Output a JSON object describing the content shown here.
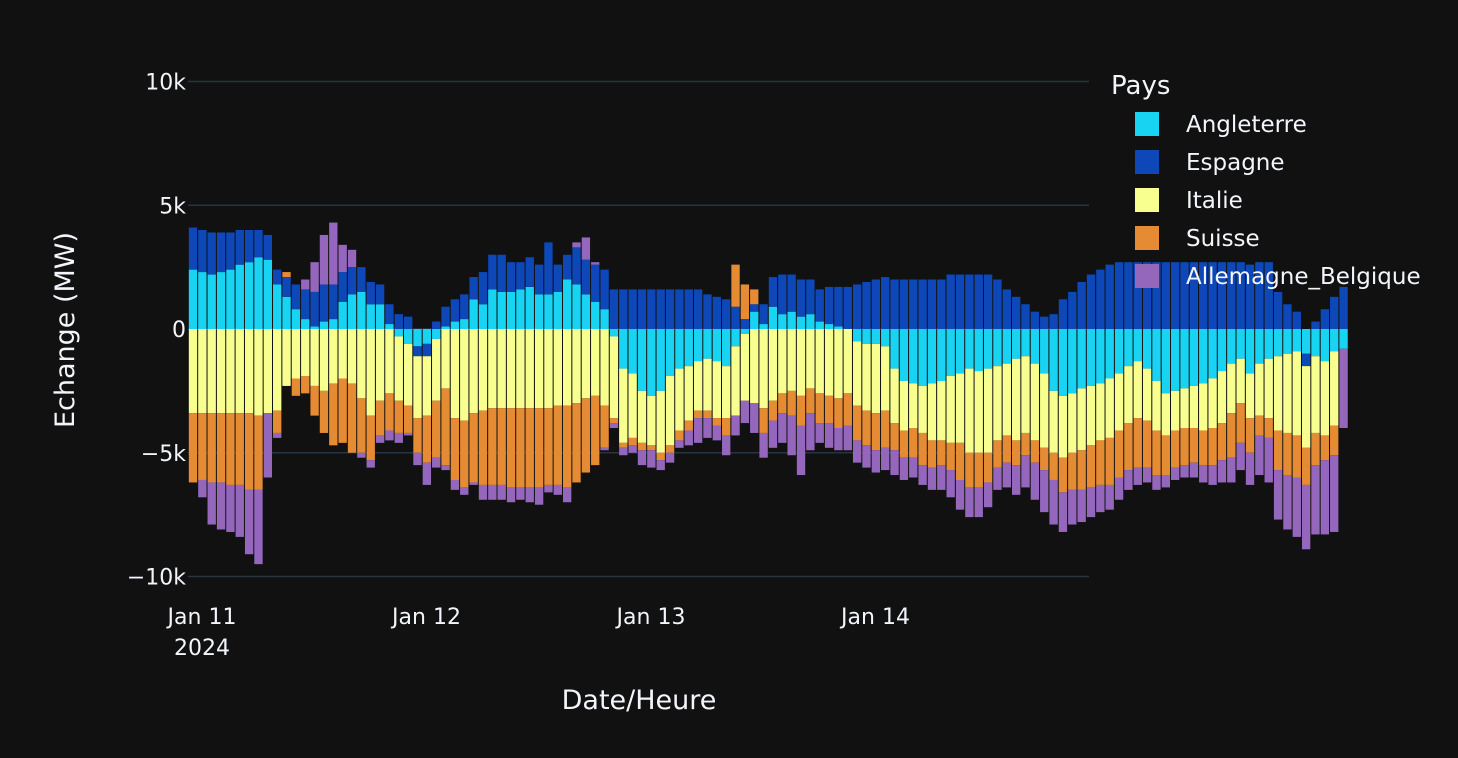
{
  "chart_data": {
    "type": "bar",
    "barmode": "relative",
    "title": "",
    "xlabel": "Date/Heure",
    "ylabel": "Echange (MW)",
    "x_start": "2024-01-11 00:00",
    "x_step_hours": 1,
    "x_tick_labels": [
      {
        "date": "2024-01-11",
        "label": "Jan 11",
        "sublabel": "2024"
      },
      {
        "date": "2024-01-12",
        "label": "Jan 12",
        "sublabel": ""
      },
      {
        "date": "2024-01-13",
        "label": "Jan 13",
        "sublabel": ""
      },
      {
        "date": "2024-01-14",
        "label": "Jan 14",
        "sublabel": ""
      }
    ],
    "y_ticks": [
      {
        "value": 10000,
        "label": "10k"
      },
      {
        "value": 5000,
        "label": "5k"
      },
      {
        "value": 0,
        "label": "0"
      },
      {
        "value": -5000,
        "label": "−5k"
      },
      {
        "value": -10000,
        "label": "−10k"
      }
    ],
    "ylim": [
      -10300,
      10300
    ],
    "grid": true,
    "legend_title": "Pays",
    "legend_position": "right",
    "series": [
      {
        "name": "Angleterre",
        "color": "#19d3f3",
        "values": [
          2400,
          2300,
          2200,
          2300,
          2400,
          2600,
          2700,
          2900,
          2800,
          1800,
          1300,
          800,
          400,
          100,
          300,
          400,
          1100,
          1400,
          1500,
          1000,
          1000,
          200,
          -300,
          -600,
          -700,
          -600,
          -400,
          100,
          300,
          400,
          1200,
          1000,
          1600,
          1500,
          1500,
          1600,
          1700,
          1400,
          1400,
          1500,
          2000,
          1800,
          1400,
          1100,
          800,
          -300,
          -1600,
          -1800,
          -2500,
          -2700,
          -2500,
          -1900,
          -1600,
          -1500,
          -1300,
          -1200,
          -1300,
          -1500,
          -700,
          -200,
          700,
          200,
          900,
          600,
          700,
          500,
          600,
          300,
          200,
          100,
          0,
          -500,
          -600,
          -600,
          -700,
          -1600,
          -2100,
          -2200,
          -2300,
          -2200,
          -2100,
          -1900,
          -1800,
          -1600,
          -1700,
          -1600,
          -1500,
          -1400,
          -1200,
          -1100,
          -1400,
          -1800,
          -2500,
          -2700,
          -2600,
          -2400,
          -2300,
          -2200,
          -2000,
          -1800,
          -1500,
          -1300,
          -1600,
          -2100,
          -2600,
          -2500,
          -2400,
          -2300,
          -2200,
          -2000,
          -1700,
          -1400,
          -1200,
          -1800,
          -1400,
          -1200,
          -1100,
          -1000,
          -900,
          -1000,
          -1100,
          -1300,
          -900,
          -800
        ]
      },
      {
        "name": "Espagne",
        "color": "#0d47b8",
        "values": [
          1700,
          1700,
          1700,
          1600,
          1500,
          1400,
          1300,
          1100,
          1000,
          600,
          800,
          1000,
          1200,
          1400,
          1500,
          1400,
          1200,
          1100,
          1000,
          900,
          800,
          800,
          600,
          500,
          -400,
          -500,
          300,
          800,
          900,
          1000,
          900,
          1300,
          1400,
          1500,
          1200,
          1100,
          1200,
          1200,
          2100,
          1100,
          1000,
          1500,
          1400,
          1500,
          1600,
          1600,
          1600,
          1600,
          1600,
          1600,
          1600,
          1600,
          1600,
          1600,
          1600,
          1400,
          1300,
          1200,
          900,
          400,
          300,
          800,
          1200,
          1600,
          1500,
          1500,
          1400,
          1300,
          1500,
          1600,
          1700,
          1800,
          1900,
          2000,
          2100,
          2000,
          2000,
          2000,
          2000,
          2000,
          2000,
          2200,
          2200,
          2200,
          2200,
          2200,
          2000,
          1600,
          1300,
          1000,
          700,
          500,
          600,
          1200,
          1500,
          1900,
          2200,
          2400,
          2600,
          2700,
          2700,
          2700,
          2700,
          2700,
          2700,
          2700,
          2700,
          2700,
          2700,
          2700,
          2700,
          2700,
          2700,
          2600,
          2700,
          2700,
          1500,
          1000,
          700,
          -500,
          300,
          800,
          1300,
          1700
        ]
      },
      {
        "name": "Italie",
        "color": "#f8ff8f",
        "values": [
          -3400,
          -3400,
          -3400,
          -3400,
          -3400,
          -3400,
          -3400,
          -3500,
          -3400,
          -3300,
          -2300,
          -2000,
          -1900,
          -2300,
          -2500,
          -2200,
          -2000,
          -2200,
          -2800,
          -3500,
          -2900,
          -2600,
          -2600,
          -2500,
          -2500,
          -2400,
          -2500,
          -2400,
          -3600,
          -3700,
          -3400,
          -3300,
          -3200,
          -3200,
          -3200,
          -3200,
          -3200,
          -3200,
          -3200,
          -3100,
          -3100,
          -3000,
          -2800,
          -2700,
          -3100,
          -3300,
          -3000,
          -2600,
          -2100,
          -2000,
          -2500,
          -2800,
          -2500,
          -2200,
          -2000,
          -2100,
          -2300,
          -2100,
          -2800,
          -2700,
          -3000,
          -3200,
          -2900,
          -2600,
          -2500,
          -2700,
          -2400,
          -2600,
          -2700,
          -2800,
          -2600,
          -2600,
          -2700,
          -2800,
          -2600,
          -2200,
          -2000,
          -1800,
          -1900,
          -2300,
          -2400,
          -2700,
          -2800,
          -3400,
          -3300,
          -3400,
          -3000,
          -2900,
          -3300,
          -3100,
          -3100,
          -3000,
          -2500,
          -2500,
          -2400,
          -2500,
          -2400,
          -2300,
          -2400,
          -2300,
          -2300,
          -2300,
          -2100,
          -2000,
          -1700,
          -1600,
          -1600,
          -1700,
          -1900,
          -2000,
          -2100,
          -2000,
          -1800,
          -1800,
          -2100,
          -2400,
          -3000,
          -3200,
          -3400,
          -3300,
          -3100,
          -3000,
          -3000
        ]
      },
      {
        "name": "Suisse",
        "color": "#e58b33",
        "values": [
          -2800,
          -2700,
          -2800,
          -2800,
          -2900,
          -2900,
          -3100,
          -3000,
          0,
          -900,
          200,
          -700,
          -700,
          -1200,
          -1700,
          -2500,
          -2600,
          -2800,
          -2200,
          -1800,
          -1400,
          -1500,
          -1300,
          -1100,
          -1400,
          -1900,
          -2300,
          -3100,
          -2500,
          -2700,
          -2800,
          -3000,
          -3100,
          -3100,
          -3200,
          -3200,
          -3200,
          -3200,
          -3100,
          -3200,
          -3300,
          -3200,
          -3000,
          -2800,
          -1700,
          -200,
          -200,
          -300,
          -300,
          -200,
          -300,
          -300,
          -400,
          -400,
          -300,
          -300,
          -300,
          -700,
          1700,
          1400,
          600,
          -1000,
          -800,
          -800,
          -1000,
          -1200,
          -1000,
          -1200,
          -1100,
          -1200,
          -1300,
          -1400,
          -1400,
          -1500,
          -1500,
          -1100,
          -1100,
          -1200,
          -1300,
          -1100,
          -1000,
          -1100,
          -1500,
          -1400,
          -1400,
          -1200,
          -1100,
          -1100,
          -1000,
          -900,
          -900,
          -900,
          -1100,
          -1400,
          -1500,
          -1600,
          -1700,
          -1800,
          -1900,
          -1900,
          -1900,
          -2000,
          -1900,
          -1800,
          -1600,
          -1500,
          -1500,
          -1400,
          -1400,
          -1500,
          -1500,
          -1800,
          -1600,
          -1400,
          -800,
          -800,
          -1600,
          -1700,
          -1700,
          -1500,
          -1300,
          -1000,
          -1200
        ]
      },
      {
        "name": "Allemagne_Belgique",
        "color": "#9467bd",
        "values": [
          0,
          -700,
          -1700,
          -1900,
          -1900,
          -2100,
          -2600,
          -3000,
          -2600,
          -200,
          0,
          0,
          400,
          1200,
          2000,
          2500,
          1100,
          700,
          -200,
          -300,
          -300,
          -400,
          -400,
          -100,
          -500,
          -900,
          -400,
          -200,
          -400,
          -300,
          -100,
          -600,
          -600,
          -600,
          -600,
          -500,
          -600,
          -700,
          -300,
          -400,
          -600,
          200,
          900,
          100,
          -100,
          -200,
          -300,
          -300,
          -600,
          -700,
          -400,
          -400,
          -300,
          -600,
          -1000,
          -800,
          -600,
          -800,
          -800,
          -900,
          -1200,
          -1000,
          -1100,
          -1200,
          -1600,
          -2000,
          -1500,
          -800,
          -1000,
          -900,
          -1000,
          -900,
          -900,
          -900,
          -900,
          -1000,
          -900,
          -800,
          -800,
          -900,
          -1000,
          -1100,
          -1200,
          -1200,
          -1200,
          -1000,
          -900,
          -1000,
          -1200,
          -1300,
          -1500,
          -1700,
          -1800,
          -1600,
          -1400,
          -1300,
          -1200,
          -1100,
          -1000,
          -900,
          -800,
          -700,
          -600,
          -600,
          -500,
          -500,
          -500,
          -600,
          -700,
          -800,
          -900,
          -1000,
          -1100,
          -1300,
          -1600,
          -1800,
          -2000,
          -2200,
          -2400,
          -2600,
          -2800,
          -3000,
          -3100,
          -3200,
          -3400
        ]
      }
    ]
  }
}
